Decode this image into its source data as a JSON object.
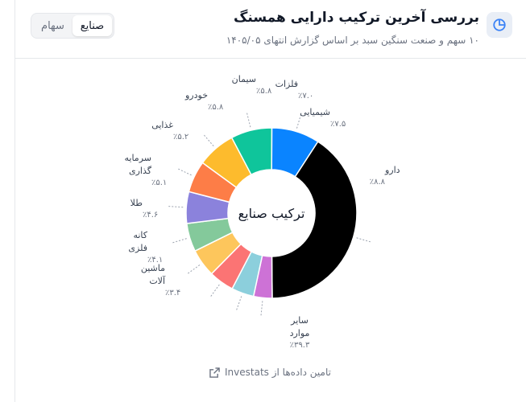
{
  "header": {
    "title": "بررسی آخرین ترکیب دارایی همسنگ",
    "subtitle": "۱۰ سهم و صنعت سنگین سبد بر اساس گزارش انتهای ۱۴۰۵/۰۵",
    "icon": "pie-chart-icon"
  },
  "toggle": {
    "options": [
      "صنایع",
      "سهام"
    ],
    "selected": "صنایع"
  },
  "footer": {
    "text": "تامین داده‌ها از Investats",
    "icon": "external-link-icon"
  },
  "chart_data": {
    "type": "pie",
    "subtype": "donut",
    "center_label": "ترکیب صنایع",
    "slices": [
      {
        "name": "دارو",
        "value": 8.8,
        "label": "٪۸.۸",
        "color": "#0a84ff"
      },
      {
        "name": "سایر موارد",
        "value": 39.3,
        "label": "٪۳۹.۳",
        "color": "#000000"
      },
      {
        "name": "ماشین آلات",
        "value": 3.4,
        "label": "٪۳.۴",
        "color": "#cd72d6"
      },
      {
        "name": "کانه فلزی",
        "value": 4.1,
        "label": "٪۴.۱",
        "color": "#8ccfdc"
      },
      {
        "name": "طلا",
        "value": 4.6,
        "label": "٪۴.۶",
        "color": "#fb7474"
      },
      {
        "name": "سرمایه گذاری",
        "value": 5.1,
        "label": "٪۵.۱",
        "color": "#fdc65c"
      },
      {
        "name": "غذایی",
        "value": 5.2,
        "label": "٪۵.۲",
        "color": "#84c99b"
      },
      {
        "name": "خودرو",
        "value": 5.8,
        "label": "٪۵.۸",
        "color": "#8b82dc"
      },
      {
        "name": "سیمان",
        "value": 5.8,
        "label": "٪۵.۸",
        "color": "#fd7d47"
      },
      {
        "name": "فلزات",
        "value": 7.0,
        "label": "٪۷.۰",
        "color": "#fdbb2d"
      },
      {
        "name": "شیمیایی",
        "value": 7.5,
        "label": "٪۷.۵",
        "color": "#0fc59b"
      }
    ]
  }
}
